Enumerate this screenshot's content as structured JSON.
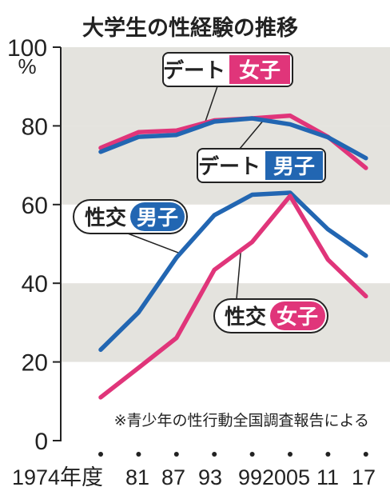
{
  "chart_data": {
    "type": "line",
    "title": "大学生の性経験の推移",
    "unit": "%",
    "x": [
      "1974年度",
      "81",
      "87",
      "93",
      "99",
      "2005",
      "11",
      "17"
    ],
    "ylim": [
      0,
      100
    ],
    "yticks": [
      "0",
      "20",
      "40",
      "60",
      "80",
      "100"
    ],
    "series": [
      {
        "name": "デート 女子",
        "color": "#e0357a",
        "values": [
          74.4,
          78.4,
          78.8,
          81.4,
          81.9,
          82.6,
          77.2,
          69.3
        ]
      },
      {
        "name": "デート 男子",
        "color": "#2266b2",
        "values": [
          73.4,
          77.2,
          77.7,
          81.1,
          81.9,
          80.4,
          77.1,
          71.8
        ]
      },
      {
        "name": "性交 男子",
        "color": "#2266b2",
        "values": [
          23.1,
          32.6,
          46.5,
          57.3,
          62.5,
          63.0,
          53.7,
          47.0
        ]
      },
      {
        "name": "性交 女子",
        "color": "#e0357a",
        "values": [
          11.0,
          18.5,
          26.1,
          43.4,
          50.5,
          62.2,
          46.0,
          36.7
        ]
      }
    ],
    "labels": {
      "date_female": {
        "plain": "デート",
        "badge": "女子"
      },
      "date_male": {
        "plain": "デート",
        "badge": "男子"
      },
      "sex_male": {
        "plain": "性交",
        "badge": "男子"
      },
      "sex_female": {
        "plain": "性交",
        "badge": "女子"
      }
    },
    "source_note": "※青少年の性行動全国調査報告による",
    "grid": "alternating bands"
  }
}
